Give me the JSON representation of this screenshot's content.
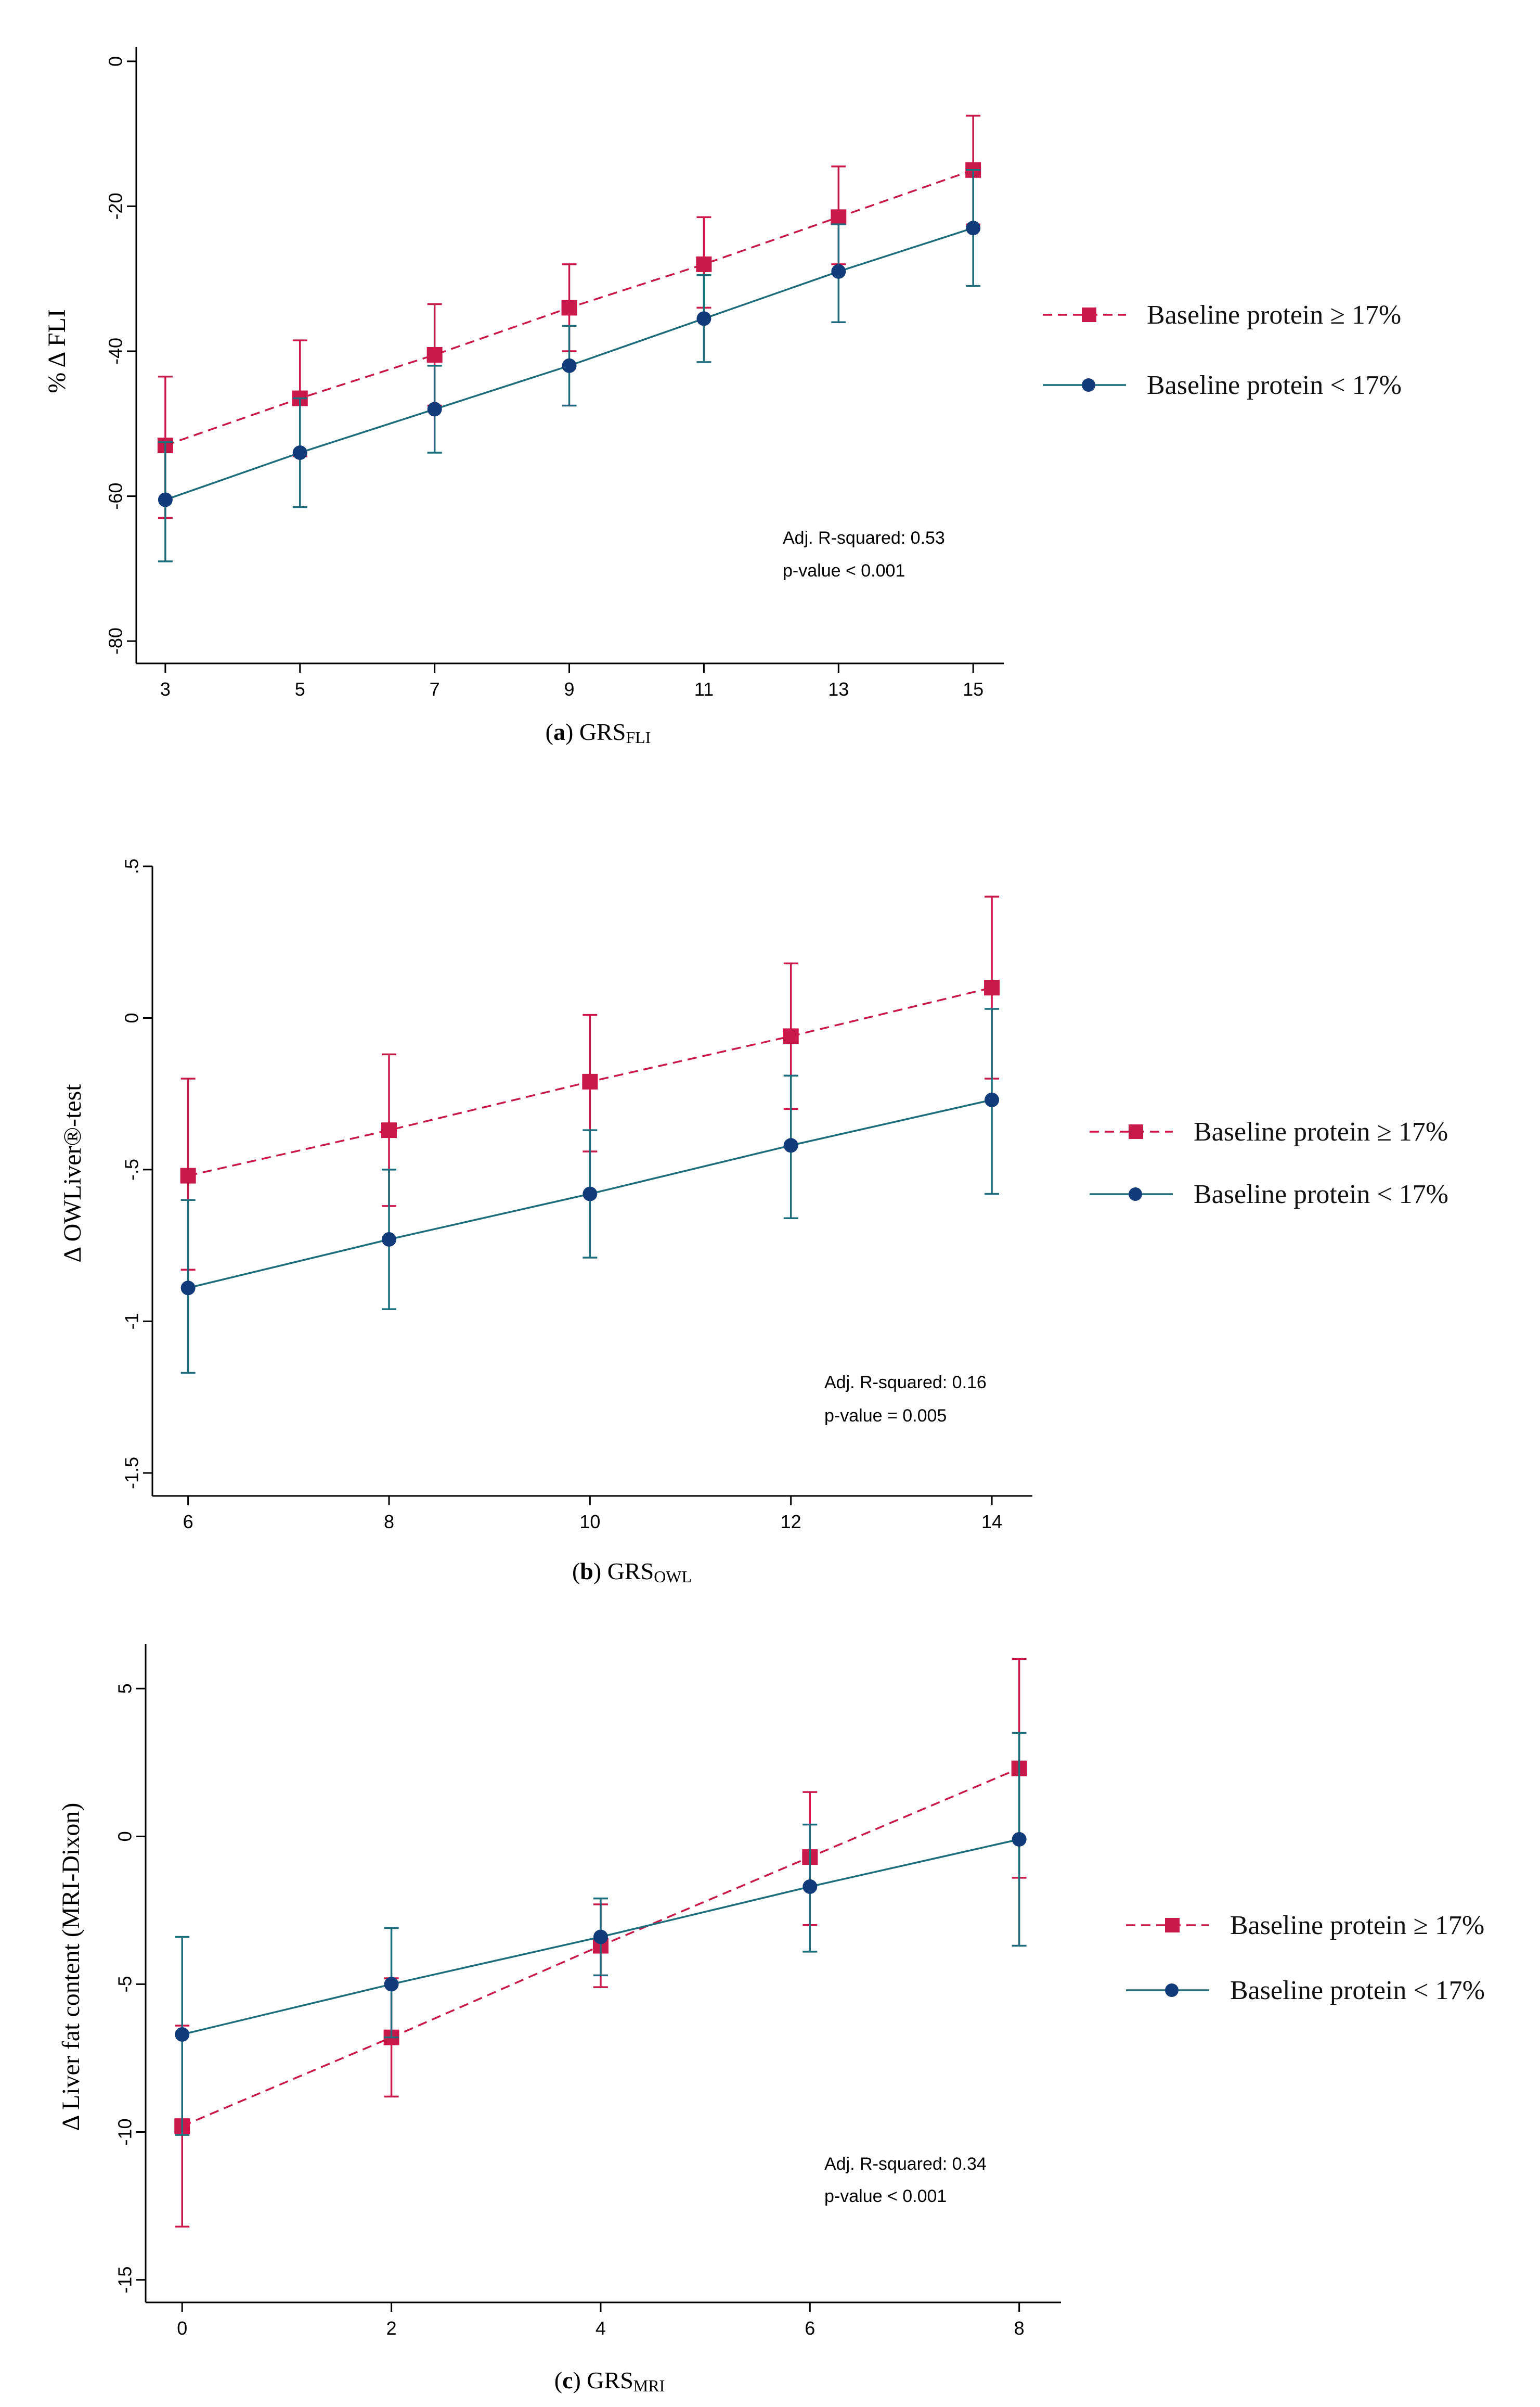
{
  "colors": {
    "high": "#c8194a",
    "low": "#1d6d7d",
    "marker_low": "#123b7a"
  },
  "chart_data": [
    {
      "type": "line",
      "ylabel": "% Δ FLI",
      "caption_label": "a",
      "caption_main": "GRS",
      "caption_sub": "FLI",
      "x": [
        3,
        5,
        7,
        9,
        11,
        13,
        15
      ],
      "xticks": [
        3,
        5,
        7,
        9,
        11,
        13,
        15
      ],
      "yticks": [
        0,
        -20,
        -40,
        -60,
        -80
      ],
      "ytick_labels": [
        "0",
        "-20",
        "-40",
        "-60",
        "-80"
      ],
      "xlim": [
        2.8,
        15.3
      ],
      "ylim": [
        -82,
        2
      ],
      "series": [
        {
          "name": "Baseline protein ≥ 17%",
          "key": "high",
          "values": [
            -53,
            -46.5,
            -40.5,
            -34,
            -28,
            -21.5,
            -15
          ],
          "lower": [
            -63,
            -54.5,
            -47.5,
            -40,
            -34,
            -28,
            -22.5
          ],
          "upper": [
            -43.5,
            -38.5,
            -33.5,
            -28,
            -21.5,
            -14.5,
            -7.5
          ]
        },
        {
          "name": "Baseline protein < 17%",
          "key": "low",
          "values": [
            -60.5,
            -54,
            -48,
            -42,
            -35.5,
            -29,
            -23
          ],
          "lower": [
            -69,
            -61.5,
            -54,
            -47.5,
            -41.5,
            -36,
            -31
          ],
          "upper": [
            -52.5,
            -46.5,
            -42,
            -36.5,
            -29.5,
            -22.5,
            -15
          ]
        }
      ],
      "annotations": [
        "Adj. R-squared: 0.53",
        "p-value < 0.001"
      ]
    },
    {
      "type": "line",
      "ylabel": "Δ OWLiver®-test",
      "caption_label": "b",
      "caption_main": "GRS",
      "caption_sub": "OWL",
      "x": [
        6,
        8,
        10,
        12,
        14
      ],
      "xticks": [
        6,
        8,
        10,
        12,
        14
      ],
      "yticks": [
        0.5,
        0,
        -0.5,
        -1,
        -1.5
      ],
      "ytick_labels": [
        ".5",
        "0",
        "-.5",
        "-1",
        "-1.5"
      ],
      "xlim": [
        5.8,
        14.3
      ],
      "ylim": [
        -1.55,
        0.5
      ],
      "series": [
        {
          "name": "Baseline protein ≥ 17%",
          "key": "high",
          "values": [
            -0.52,
            -0.37,
            -0.21,
            -0.06,
            0.1
          ],
          "lower": [
            -0.83,
            -0.62,
            -0.44,
            -0.3,
            -0.2
          ],
          "upper": [
            -0.2,
            -0.12,
            0.01,
            0.18,
            0.4
          ]
        },
        {
          "name": "Baseline protein < 17%",
          "key": "low",
          "values": [
            -0.89,
            -0.73,
            -0.58,
            -0.42,
            -0.27
          ],
          "lower": [
            -1.17,
            -0.96,
            -0.79,
            -0.66,
            -0.58
          ],
          "upper": [
            -0.6,
            -0.5,
            -0.37,
            -0.19,
            0.03
          ]
        }
      ],
      "annotations": [
        "Adj. R-squared: 0.16",
        "p-value = 0.005"
      ]
    },
    {
      "type": "line",
      "ylabel": "Δ Liver fat content (MRI-Dixon)",
      "caption_label": "c",
      "caption_main": "GRS",
      "caption_sub": "MRI",
      "x": [
        0,
        2,
        4,
        6,
        8
      ],
      "xticks": [
        0,
        2,
        4,
        6,
        8
      ],
      "yticks": [
        5,
        0,
        -5,
        -10,
        -15
      ],
      "ytick_labels": [
        "5",
        "0",
        "-5",
        "-10",
        "-15"
      ],
      "xlim": [
        -0.2,
        8.3
      ],
      "ylim": [
        -15.5,
        6.5
      ],
      "series": [
        {
          "name": "Baseline protein ≥ 17%",
          "key": "high",
          "values": [
            -9.8,
            -6.8,
            -3.7,
            -0.7,
            2.3
          ],
          "lower": [
            -13.2,
            -8.8,
            -5.1,
            -3,
            -1.4
          ],
          "upper": [
            -6.4,
            -4.8,
            -2.3,
            1.5,
            6
          ]
        },
        {
          "name": "Baseline protein < 17%",
          "key": "low",
          "values": [
            -6.7,
            -5,
            -3.4,
            -1.7,
            -0.1
          ],
          "lower": [
            -10.1,
            -6.8,
            -4.7,
            -3.9,
            -3.7
          ],
          "upper": [
            -3.4,
            -3.1,
            -2.1,
            0.4,
            3.5
          ]
        }
      ],
      "annotations": [
        "Adj. R-squared: 0.34",
        "p-value < 0.001"
      ]
    }
  ]
}
